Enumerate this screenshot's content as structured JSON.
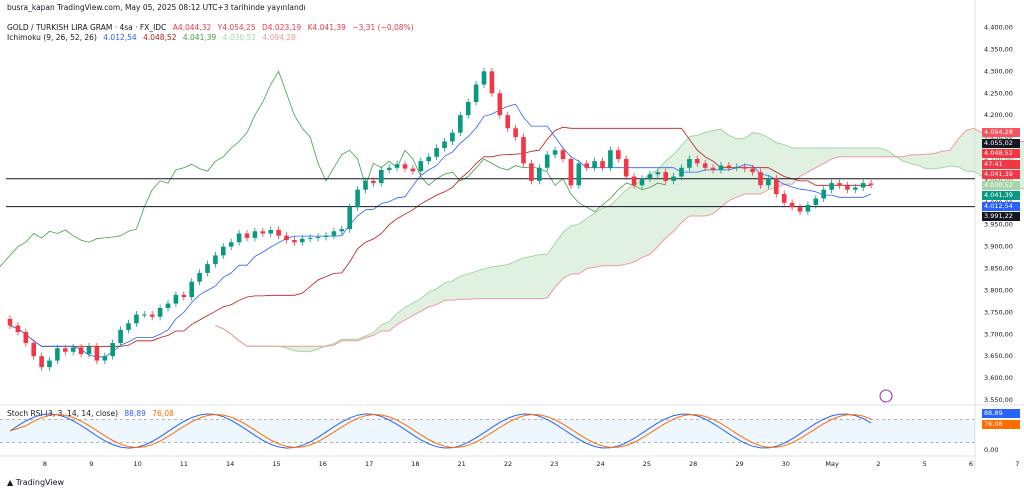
{
  "header": {
    "publisher": "busra_kapan TradingView.com, May 05, 2025 08:12 UTC+3 tarihinde yayınlandı",
    "symbol": "GOLD / TURKISH LIRA GRAM · 4sa · FX_IDC",
    "ohlc": [
      "A4.044,32",
      "Y4.054,25",
      "D4.023,19",
      "K4.041,39",
      "−3,31 (−0,08%)"
    ],
    "indicator_name": "Ichimoku (9, 26, 52, 26)",
    "indicator_values": [
      "4.012,54",
      "4.048,52",
      "4.041,39",
      "4.030,52",
      "4.094,28"
    ],
    "rsi_name": "Stoch RSI (3, 3, 14, 14, close)",
    "rsi_values": [
      "88,89",
      "76,08"
    ]
  },
  "colors": {
    "up": "#26a69a",
    "up_candle": "#089981",
    "down": "#f23645",
    "conversion": "#2962ff",
    "base": "#b71c1c",
    "lagging": "#43a047",
    "cloud_green": "#c8e6c9",
    "cloud_red": "#ffcdd2",
    "rsi_k": "#2962ff",
    "rsi_d": "#ff6d00"
  },
  "price_badges": [
    {
      "label": "4.094,28",
      "color": "#f7525f"
    },
    {
      "label": "4.055,02",
      "color": "#131722"
    },
    {
      "label": "4.048,52",
      "color": "#f23645"
    },
    {
      "label": "47:41",
      "color": "#f23645"
    },
    {
      "label": "4.041,39",
      "color": "#f23645"
    },
    {
      "label": "4.030,52",
      "color": "#a5d6a7"
    },
    {
      "label": "4.041,39",
      "color": "#089981"
    },
    {
      "label": "4.012,54",
      "color": "#2962ff"
    },
    {
      "label": "3.991,22",
      "color": "#131722"
    }
  ],
  "rsi_badges": [
    {
      "label": "88,89",
      "color": "#2962ff"
    },
    {
      "label": "76,08",
      "color": "#ff6d00"
    }
  ],
  "footer": {
    "logo_text": "TradingView"
  },
  "chart_data": {
    "type": "candlestick",
    "ylim": [
      3550,
      4400
    ],
    "y_ticks": [
      "4.400,00",
      "4.350,00",
      "4.300,00",
      "4.250,00",
      "4.200,00",
      "4.150,00",
      "4.100,00",
      "4.050,00",
      "4.000,00",
      "3.950,00",
      "3.900,00",
      "3.850,00",
      "3.800,00",
      "3.750,00",
      "3.700,00",
      "3.650,00",
      "3.600,00",
      "3.550,00"
    ],
    "y_tick_values": [
      4400,
      4350,
      4300,
      4250,
      4200,
      4150,
      4100,
      4050,
      4000,
      3950,
      3900,
      3850,
      3800,
      3750,
      3700,
      3650,
      3600,
      3550
    ],
    "x_ticks": [
      "8",
      "9",
      "10",
      "11",
      "14",
      "15",
      "16",
      "17",
      "18",
      "21",
      "22",
      "23",
      "24",
      "25",
      "28",
      "29",
      "30",
      "May",
      "2",
      "5",
      "6",
      "7"
    ],
    "horizontal_lines": [
      4055.02,
      3991.22
    ],
    "close": [
      3720,
      3705,
      3680,
      3650,
      3625,
      3640,
      3668,
      3660,
      3670,
      3655,
      3672,
      3640,
      3650,
      3680,
      3710,
      3725,
      3745,
      3745,
      3740,
      3760,
      3770,
      3790,
      3785,
      3820,
      3840,
      3860,
      3880,
      3900,
      3910,
      3930,
      3920,
      3935,
      3930,
      3938,
      3925,
      3915,
      3910,
      3918,
      3920,
      3922,
      3925,
      3935,
      3940,
      3990,
      4030,
      4050,
      4045,
      4075,
      4080,
      4088,
      4078,
      4072,
      4095,
      4105,
      4125,
      4140,
      4160,
      4200,
      4230,
      4270,
      4300,
      4250,
      4200,
      4170,
      4150,
      4090,
      4050,
      4080,
      4110,
      4120,
      4100,
      4040,
      4090,
      4080,
      4095,
      4080,
      4120,
      4100,
      4060,
      4040,
      4055,
      4065,
      4070,
      4050,
      4060,
      4080,
      4100,
      4090,
      4080,
      4075,
      4085,
      4080,
      4082,
      4078,
      4070,
      4040,
      4055,
      4020,
      4000,
      3990,
      3980,
      3995,
      4010,
      4030,
      4045,
      4040,
      4030,
      4035,
      4045,
      4041
    ],
    "open": [
      3735,
      3720,
      3705,
      3680,
      3650,
      3625,
      3640,
      3668,
      3660,
      3670,
      3655,
      3672,
      3640,
      3650,
      3680,
      3710,
      3725,
      3745,
      3745,
      3740,
      3760,
      3770,
      3790,
      3785,
      3820,
      3840,
      3860,
      3880,
      3900,
      3910,
      3930,
      3920,
      3935,
      3930,
      3938,
      3925,
      3915,
      3910,
      3918,
      3920,
      3922,
      3925,
      3935,
      3940,
      3990,
      4030,
      4050,
      4045,
      4075,
      4080,
      4088,
      4078,
      4072,
      4095,
      4105,
      4125,
      4140,
      4160,
      4200,
      4230,
      4270,
      4300,
      4250,
      4200,
      4170,
      4150,
      4090,
      4050,
      4080,
      4110,
      4120,
      4100,
      4040,
      4090,
      4080,
      4095,
      4080,
      4120,
      4100,
      4060,
      4040,
      4055,
      4065,
      4070,
      4050,
      4060,
      4080,
      4100,
      4090,
      4080,
      4075,
      4085,
      4080,
      4082,
      4078,
      4070,
      4040,
      4055,
      4020,
      4000,
      3990,
      3980,
      3995,
      4010,
      4030,
      4045,
      4040,
      4030,
      4035,
      4044
    ]
  }
}
